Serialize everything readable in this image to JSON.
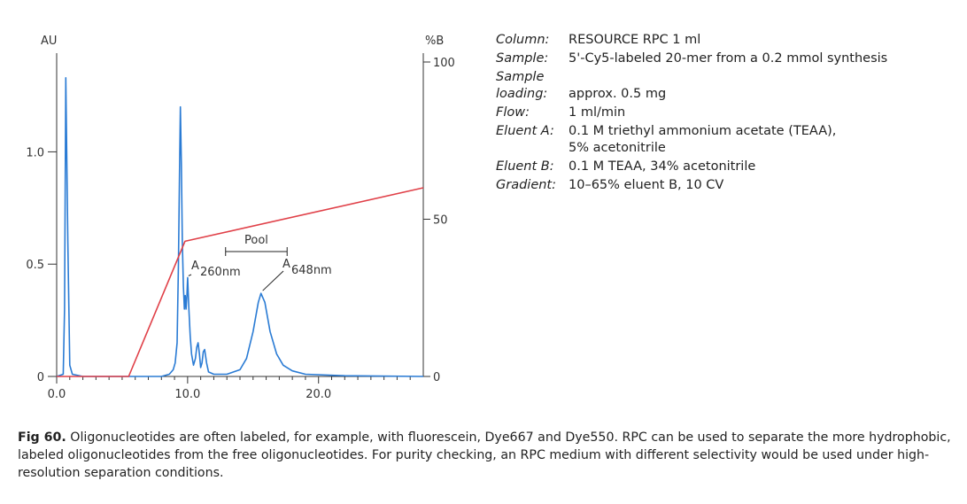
{
  "chart_data": {
    "type": "line",
    "title": "",
    "xlabel": "",
    "ylabel_left": "AU",
    "ylabel_right": "%B",
    "xlim": [
      0,
      28
    ],
    "ylim_left": [
      0,
      1.4
    ],
    "ylim_right": [
      0,
      100
    ],
    "x_ticks": [
      0,
      10,
      20
    ],
    "x_tick_labels": [
      "0.0",
      "10.0",
      "20.0"
    ],
    "y_left_ticks": [
      0,
      0.5,
      1.0
    ],
    "y_left_tick_labels": [
      "0",
      "0.5",
      "1.0"
    ],
    "y_right_ticks": [
      0,
      50,
      100
    ],
    "y_right_tick_labels": [
      "0",
      "50",
      "100"
    ],
    "grid": false,
    "series": [
      {
        "axis": "left",
        "color": "#2a7bd4",
        "points": [
          [
            0,
            0
          ],
          [
            0.5,
            0.01
          ],
          [
            0.6,
            0.3
          ],
          [
            0.7,
            1.33
          ],
          [
            0.85,
            0.6
          ],
          [
            1.0,
            0.05
          ],
          [
            1.2,
            0.01
          ],
          [
            2,
            0
          ],
          [
            5,
            0
          ],
          [
            8,
            0
          ],
          [
            8.6,
            0.01
          ],
          [
            8.9,
            0.03
          ],
          [
            9.05,
            0.06
          ],
          [
            9.2,
            0.15
          ],
          [
            9.3,
            0.5
          ],
          [
            9.38,
            0.9
          ],
          [
            9.45,
            1.2
          ],
          [
            9.52,
            0.95
          ],
          [
            9.6,
            0.6
          ],
          [
            9.68,
            0.4
          ],
          [
            9.75,
            0.3
          ],
          [
            9.82,
            0.36
          ],
          [
            9.88,
            0.3
          ],
          [
            9.95,
            0.36
          ],
          [
            10.0,
            0.44
          ],
          [
            10.1,
            0.3
          ],
          [
            10.2,
            0.18
          ],
          [
            10.3,
            0.1
          ],
          [
            10.45,
            0.05
          ],
          [
            10.6,
            0.08
          ],
          [
            10.7,
            0.13
          ],
          [
            10.8,
            0.15
          ],
          [
            10.9,
            0.1
          ],
          [
            11.0,
            0.04
          ],
          [
            11.1,
            0.06
          ],
          [
            11.2,
            0.11
          ],
          [
            11.3,
            0.12
          ],
          [
            11.45,
            0.06
          ],
          [
            11.6,
            0.02
          ],
          [
            12,
            0.01
          ],
          [
            13,
            0.01
          ],
          [
            14,
            0.03
          ],
          [
            14.5,
            0.08
          ],
          [
            15,
            0.2
          ],
          [
            15.4,
            0.33
          ],
          [
            15.6,
            0.37
          ],
          [
            15.9,
            0.33
          ],
          [
            16.3,
            0.2
          ],
          [
            16.8,
            0.1
          ],
          [
            17.3,
            0.05
          ],
          [
            18,
            0.025
          ],
          [
            19,
            0.01
          ],
          [
            22,
            0.003
          ],
          [
            28,
            0
          ]
        ]
      },
      {
        "axis": "right",
        "color": "#e04048",
        "points": [
          [
            0,
            0
          ],
          [
            5.5,
            0
          ],
          [
            9.8,
            43
          ],
          [
            28,
            60
          ]
        ]
      }
    ],
    "annotations": [
      {
        "text": "Pool",
        "x_range": [
          12.9,
          17.6
        ]
      },
      {
        "text": "A",
        "sub": "260nm",
        "x": 10.0,
        "y": 0.44
      },
      {
        "text": "A",
        "sub": "648nm",
        "x": 15.6,
        "y": 0.37
      }
    ]
  },
  "parameters": [
    {
      "label": "Column:",
      "value": "RESOURCE RPC 1 ml"
    },
    {
      "label": "Sample:",
      "value": "5'-Cy5-labeled 20-mer from a 0.2 mmol synthesis"
    },
    {
      "label": "Sample\nloading:",
      "value": "\napprox. 0.5 mg"
    },
    {
      "label": "Flow:",
      "value": "1 ml/min"
    },
    {
      "label": "Eluent A:",
      "value": "0.1 M triethyl ammonium acetate (TEAA),\n5% acetonitrile"
    },
    {
      "label": "Eluent B:",
      "value": "0.1 M TEAA, 34% acetonitrile"
    },
    {
      "label": "Gradient:",
      "value": "10–65% eluent B, 10 CV"
    }
  ],
  "caption": {
    "label": "Fig 60.",
    "text": " Oligonucleotides are often labeled, for example, with fluorescein, Dye667 and Dye550. RPC can be used to separate the more hydrophobic, labeled oligonucleotides from the free oligonucleotides. For purity checking, an RPC medium with different selectivity would be used under high-resolution separation conditions."
  }
}
